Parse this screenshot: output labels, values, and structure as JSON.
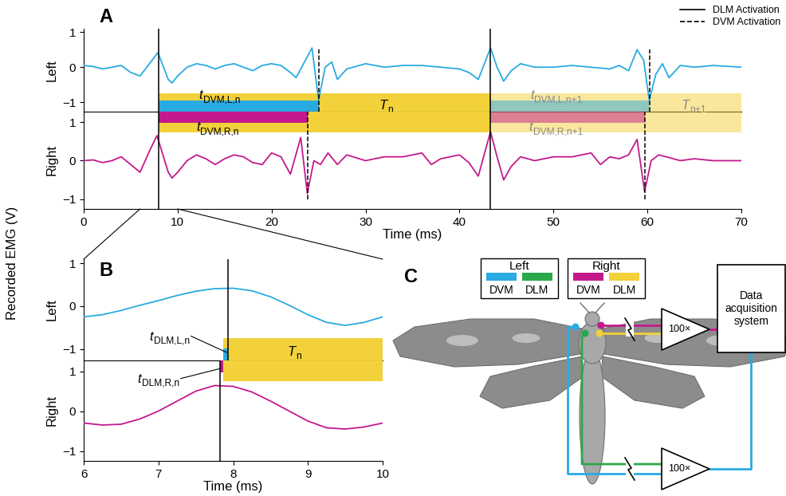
{
  "figure": {
    "ylabel": "Recorded EMG (V)",
    "legend": "upper right",
    "legend_entries": [
      {
        "name": "DLM Activation",
        "line_style": "solid",
        "color": "#000000"
      },
      {
        "name": "DVM Activation",
        "line_style": "dashed",
        "color": "#000000"
      }
    ]
  },
  "chart_data": [
    {
      "type": "line",
      "panel": "A",
      "xlabel": "Time (ms)",
      "xlim": [
        0,
        70
      ],
      "xticks": [
        0,
        10,
        20,
        30,
        40,
        50,
        60,
        70
      ],
      "dlm_activation": [
        8.0,
        43.3
      ],
      "periods": [
        {
          "main": "T",
          "sub": "n",
          "color": "#f2d13a"
        },
        {
          "main": "T",
          "sub": "n+1",
          "color": "#f2d13a"
        }
      ],
      "channels": [
        {
          "name": "Left",
          "color": "#29abe2",
          "ylim": [
            -1.27,
            1.1
          ],
          "yticks": [
            {
              "value": -1,
              "label": "−1"
            },
            0,
            1
          ],
          "dvm_activation": [
            25.0,
            60.2
          ],
          "intervals": [
            {
              "main": "t",
              "sub": "DVM,L,n"
            },
            {
              "main": "t",
              "sub": "DVM,L,n+1"
            }
          ],
          "x": [
            0,
            1,
            2,
            3,
            4,
            5,
            6,
            7,
            7.9,
            9,
            9.4,
            10,
            11,
            12,
            13,
            14,
            15,
            16,
            17,
            18,
            19,
            20,
            21,
            22,
            22.6,
            23.6,
            24.3,
            25,
            25.7,
            26.4,
            27,
            28,
            30,
            32,
            34,
            36,
            38,
            40,
            41,
            42,
            43.3,
            44,
            44.7,
            45.5,
            46.5,
            48,
            50,
            52,
            54,
            56,
            57,
            58,
            58.9,
            59.6,
            60.2,
            60.9,
            61.6,
            62.3,
            63.5,
            65,
            67,
            70
          ],
          "values": [
            0.05,
            0.02,
            -0.05,
            0.0,
            0.05,
            -0.15,
            -0.25,
            0.1,
            0.42,
            -0.35,
            -0.45,
            -0.25,
            0.0,
            0.1,
            0.05,
            -0.05,
            0.05,
            0.1,
            0.0,
            -0.1,
            0.05,
            0.1,
            0.05,
            -0.15,
            -0.3,
            0.2,
            0.55,
            -0.95,
            0.0,
            0.15,
            -0.35,
            -0.05,
            0.1,
            0.0,
            0.05,
            0.05,
            0.0,
            -0.05,
            -0.15,
            -0.35,
            0.55,
            0.0,
            -0.4,
            -0.1,
            0.1,
            0.0,
            0.0,
            0.05,
            0.0,
            -0.05,
            0.05,
            -0.1,
            0.5,
            0.2,
            -0.95,
            -0.2,
            0.1,
            -0.3,
            0.05,
            0.0,
            0.05,
            0.0
          ]
        },
        {
          "name": "Right",
          "color": "#c4198c",
          "ylim": [
            -1.25,
            1.27
          ],
          "yticks": [
            {
              "value": -1,
              "label": "−1"
            },
            0,
            1
          ],
          "dvm_activation": [
            23.8,
            59.7
          ],
          "intervals": [
            {
              "main": "t",
              "sub": "DVM,R,n"
            },
            {
              "main": "t",
              "sub": "DVM,R,n+1"
            }
          ],
          "x": [
            0,
            1,
            2,
            3,
            4,
            5,
            6,
            7,
            7.8,
            9,
            9.4,
            10,
            11,
            12,
            13,
            14,
            15,
            16,
            17,
            18,
            19,
            20,
            21,
            22,
            23.1,
            23.8,
            24.5,
            25.2,
            26,
            27,
            28,
            30,
            32,
            34,
            36,
            37,
            38,
            40,
            41,
            42,
            43.3,
            44,
            44.7,
            45.5,
            46.5,
            48,
            50,
            52,
            54,
            55,
            56,
            57,
            58,
            58.9,
            59.7,
            60.4,
            61.2,
            62,
            63.5,
            65,
            67,
            70
          ],
          "values": [
            0.0,
            0.02,
            -0.05,
            0.0,
            0.1,
            -0.1,
            -0.3,
            0.25,
            0.65,
            -0.3,
            -0.45,
            -0.3,
            0.0,
            0.15,
            0.05,
            -0.1,
            0.05,
            0.15,
            0.1,
            -0.05,
            -0.1,
            0.2,
            0.1,
            -0.35,
            0.6,
            -0.85,
            0.0,
            -0.1,
            0.2,
            -0.1,
            0.15,
            0.0,
            0.1,
            0.1,
            0.2,
            -0.1,
            0.05,
            0.15,
            -0.05,
            -0.4,
            0.75,
            0.1,
            -0.5,
            -0.15,
            0.1,
            0.0,
            0.1,
            0.1,
            0.2,
            -0.1,
            0.1,
            0.05,
            0.15,
            0.55,
            -0.8,
            0.0,
            0.15,
            0.1,
            0.0,
            0.05,
            0.0,
            0.0
          ]
        }
      ]
    },
    {
      "type": "line",
      "panel": "B",
      "xlabel": "Time (ms)",
      "xlim": [
        6,
        10
      ],
      "xticks": [
        6,
        7,
        8,
        9,
        10
      ],
      "period_start": 7.87,
      "period": {
        "main": "T",
        "sub": "n",
        "color": "#f2d13a"
      },
      "channels": [
        {
          "name": "Left",
          "color": "#29abe2",
          "ylim": [
            -1.27,
            1.1
          ],
          "yticks": [
            {
              "value": -1,
              "label": "−1"
            },
            0,
            1
          ],
          "dlm_activation": 7.93,
          "interval": {
            "main": "t",
            "sub": "DLM,L,n"
          },
          "x": [
            6,
            6.25,
            6.5,
            6.75,
            7,
            7.25,
            7.5,
            7.75,
            8,
            8.25,
            8.5,
            8.75,
            9,
            9.25,
            9.5,
            9.75,
            10
          ],
          "values": [
            -0.25,
            -0.2,
            -0.1,
            0.02,
            0.13,
            0.25,
            0.35,
            0.41,
            0.42,
            0.36,
            0.22,
            0.02,
            -0.2,
            -0.38,
            -0.45,
            -0.38,
            -0.25
          ]
        },
        {
          "name": "Right",
          "color": "#c4198c",
          "ylim": [
            -1.25,
            1.27
          ],
          "yticks": [
            {
              "value": -1,
              "label": "−1"
            },
            0,
            1
          ],
          "dlm_activation": 7.82,
          "interval": {
            "main": "t",
            "sub": "DLM,R,n"
          },
          "x": [
            6,
            6.25,
            6.5,
            6.75,
            7,
            7.25,
            7.5,
            7.75,
            8,
            8.25,
            8.5,
            8.75,
            9,
            9.25,
            9.5,
            9.75,
            10
          ],
          "values": [
            -0.3,
            -0.35,
            -0.33,
            -0.2,
            0.0,
            0.25,
            0.5,
            0.64,
            0.62,
            0.48,
            0.25,
            0.0,
            -0.25,
            -0.42,
            -0.45,
            -0.4,
            -0.3
          ]
        }
      ]
    }
  ],
  "diagram": {
    "label": "C",
    "groups": [
      {
        "title": "Left",
        "items": [
          {
            "label": "DVM",
            "color": "#29abe2"
          },
          {
            "label": "DLM",
            "color": "#2aa84a"
          }
        ]
      },
      {
        "title": "Right",
        "items": [
          {
            "label": "DVM",
            "color": "#c4198c"
          },
          {
            "label": "DLM",
            "color": "#f2d13a"
          }
        ]
      }
    ],
    "amplifiers": [
      "100×",
      "100×"
    ],
    "daq": "Data\nacquisition\nsystem"
  }
}
